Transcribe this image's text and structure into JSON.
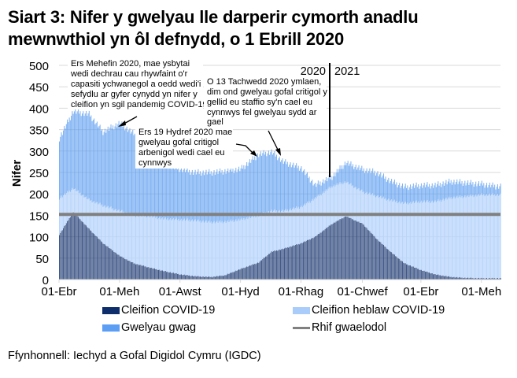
{
  "title": "Siart 3: Nifer y gwelyau lle darperir cymorth anadlu mewnwthiol yn ôl defnydd, o 1 Ebrill 2020",
  "source": "Ffynhonnell: Iechyd a Gofal Digidol Cymru (IGDC)",
  "colors": {
    "covid": "#1f3b73",
    "non_covid": "#b8d5fb",
    "empty": "#5d9ef0",
    "baseline": "#808080",
    "gridline": "#d9d9d9"
  },
  "legend": [
    {
      "label": "Cleifion COVID-19",
      "color": "#0d2d6b",
      "kind": "bar"
    },
    {
      "label": "Cleifion heblaw COVID-19",
      "color": "#a9ccfb",
      "kind": "bar"
    },
    {
      "label": "Gwelyau gwag",
      "color": "#5b9ef4",
      "kind": "bar"
    },
    {
      "label": "Rhif gwaelodol",
      "color": "#808080",
      "kind": "line"
    }
  ],
  "annotations": [
    {
      "id": "june",
      "text": [
        "Ers Mehefin 2020, mae ysbytai",
        "wedi dechrau cau rhywfaint o'r",
        "capasiti ychwanegol a oedd wedi'i",
        "sefydlu ar gyfer cynydd yn nifer y",
        "cleifion yn sgil pandemig COVID-19"
      ]
    },
    {
      "id": "oct19",
      "text": [
        "Ers 19 Hydref 2020 mae",
        "gwelyau gofal critigol",
        "arbenigol wedi cael eu",
        "cynnwys"
      ]
    },
    {
      "id": "nov13",
      "text": [
        "O 13 Tachwedd 2020 ymlaen,",
        "dim ond gwelyau gofal critigol y",
        "gellid eu staffio sy'n cael eu",
        "cynnwys fel gwelyau sydd ar",
        "gael"
      ]
    },
    {
      "id": "y2020",
      "text": [
        "2020"
      ]
    },
    {
      "id": "y2021",
      "text": [
        "2021"
      ]
    }
  ],
  "chart_data": {
    "type": "bar",
    "stacked": true,
    "title": "Siart 3: Nifer y gwelyau lle darperir cymorth anadlu mewnwthiol yn ôl defnydd, o 1 Ebrill 2020",
    "xlabel": "",
    "ylabel": "Nifer",
    "ylim": [
      0,
      500
    ],
    "yticks": [
      0,
      50,
      100,
      150,
      200,
      250,
      300,
      350,
      400,
      450,
      500
    ],
    "xtick_labels": [
      "01-Ebr",
      "01-Meh",
      "01-Awst",
      "01-Hyd",
      "01-Rhag",
      "01-Chwef",
      "01-Ebr",
      "01-Meh"
    ],
    "grid": true,
    "legend_position": "bottom",
    "baseline": {
      "name": "Rhif gwaelodol",
      "value": 152
    },
    "x": [
      "2020-04-01",
      "2020-04-15",
      "2020-05-01",
      "2020-05-15",
      "2020-06-01",
      "2020-06-15",
      "2020-07-01",
      "2020-07-15",
      "2020-08-01",
      "2020-08-15",
      "2020-09-01",
      "2020-09-15",
      "2020-10-01",
      "2020-10-19",
      "2020-11-01",
      "2020-11-13",
      "2020-12-01",
      "2020-12-15",
      "2021-01-01",
      "2021-01-15",
      "2021-02-01",
      "2021-02-15",
      "2021-03-01",
      "2021-03-15",
      "2021-04-01",
      "2021-04-15",
      "2021-05-01",
      "2021-05-15",
      "2021-06-01",
      "2021-06-15"
    ],
    "series": [
      {
        "name": "Cleifion COVID-19",
        "values": [
          105,
          158,
          118,
          85,
          55,
          38,
          28,
          20,
          12,
          8,
          6,
          10,
          25,
          40,
          65,
          72,
          85,
          100,
          130,
          148,
          130,
          95,
          65,
          38,
          22,
          12,
          6,
          4,
          3,
          3
        ]
      },
      {
        "name": "Cleifion heblaw COVID-19",
        "values": [
          85,
          55,
          68,
          88,
          105,
          112,
          120,
          122,
          128,
          130,
          128,
          125,
          115,
          110,
          95,
          88,
          85,
          90,
          88,
          80,
          75,
          100,
          120,
          140,
          160,
          170,
          185,
          190,
          195,
          195
        ]
      },
      {
        "name": "Gwelyau gwag",
        "values": [
          140,
          180,
          200,
          172,
          205,
          190,
          152,
          128,
          118,
          112,
          116,
          118,
          118,
          142,
          138,
          115,
          90,
          30,
          22,
          45,
          52,
          55,
          45,
          38,
          38,
          38,
          38,
          32,
          25,
          20
        ]
      }
    ],
    "totals": [
      330,
      393,
      386,
      345,
      365,
      340,
      300,
      270,
      258,
      250,
      250,
      253,
      258,
      292,
      298,
      275,
      260,
      220,
      240,
      273,
      257,
      250,
      230,
      216,
      220,
      220,
      229,
      226,
      223,
      218
    ]
  }
}
